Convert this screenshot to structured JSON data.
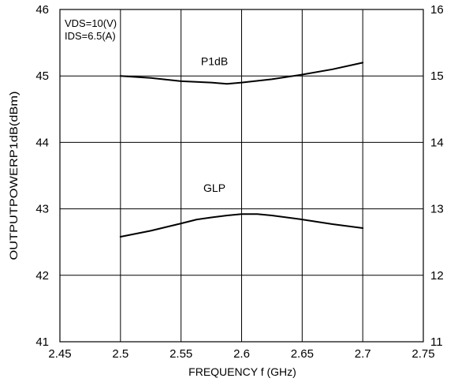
{
  "chart_data": {
    "type": "line",
    "title": "",
    "xlabel": "FREQUENCY f (GHz)",
    "ylabel": "OUTPUTPOWERP1dB(dBm)",
    "xlim": [
      2.45,
      2.75
    ],
    "ylim": [
      41,
      46
    ],
    "y2lim": [
      11,
      16
    ],
    "grid": true,
    "legend": "none",
    "xticks": [
      "2.45",
      "2.5",
      "2.55",
      "2.6",
      "2.65",
      "2.7",
      "2.75"
    ],
    "yticks": [
      "41",
      "42",
      "43",
      "44",
      "45",
      "46"
    ],
    "y2ticks": [
      "11",
      "12",
      "13",
      "14",
      "15",
      "16"
    ],
    "annotations": [
      "VDS=10(V)",
      "IDS=6.5(A)"
    ],
    "series": [
      {
        "name": "P1dB",
        "axis": "left",
        "x": [
          2.5,
          2.525,
          2.55,
          2.575,
          2.588,
          2.6,
          2.625,
          2.65,
          2.675,
          2.7
        ],
        "y": [
          45.0,
          44.97,
          44.92,
          44.9,
          44.88,
          44.9,
          44.95,
          45.02,
          45.1,
          45.2
        ]
      },
      {
        "name": "GLP",
        "axis": "right",
        "x": [
          2.5,
          2.525,
          2.55,
          2.563,
          2.575,
          2.588,
          2.6,
          2.613,
          2.625,
          2.65,
          2.675,
          2.7
        ],
        "y": [
          12.58,
          12.67,
          12.78,
          12.84,
          12.87,
          12.9,
          12.92,
          12.92,
          12.9,
          12.84,
          12.77,
          12.71
        ]
      }
    ]
  }
}
